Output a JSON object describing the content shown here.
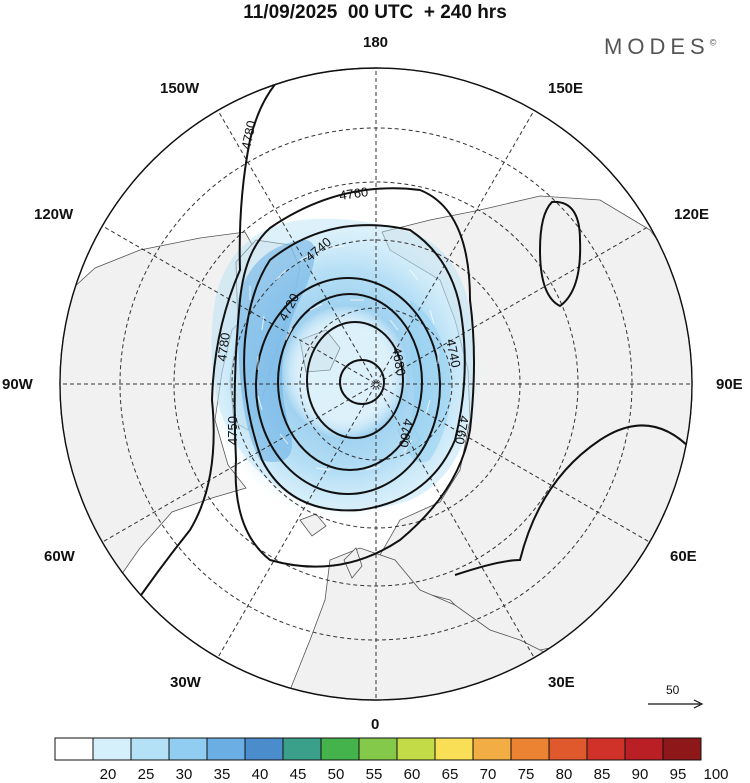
{
  "title": "11/09/2025  00 UTC  + 240 hrs",
  "brand": "MODES",
  "brand_mark": "©",
  "longitude_labels": {
    "top": "180",
    "bottom": "0",
    "left": "90W",
    "right": "90E",
    "upper_left_1": "150W",
    "upper_left_2": "120W",
    "lower_left_1": "60W",
    "lower_left_2": "30W",
    "upper_right_1": "150E",
    "upper_right_2": "120E",
    "lower_right_1": "60E",
    "lower_right_2": "30E"
  },
  "contour_labels": {
    "c4780_top": "4780",
    "c4760_top": "4760",
    "c4740_top": "4740",
    "c4720_top": "4720",
    "c4780_left": "4780",
    "c4750_left": "4750",
    "c4680_right": "4680",
    "c4740_right": "4740",
    "c4700_right": "4700",
    "c4760_right": "4760"
  },
  "wind_reference": {
    "label": "50",
    "icon": "arrow-right-icon"
  },
  "colorbar": {
    "labels": [
      "20",
      "25",
      "30",
      "35",
      "40",
      "45",
      "50",
      "55",
      "60",
      "65",
      "70",
      "75",
      "80",
      "85",
      "90",
      "95",
      "100"
    ],
    "colors": [
      "#ffffff",
      "#d6f0fb",
      "#b4e1f6",
      "#90cdf0",
      "#6aaee3",
      "#4a8ccc",
      "#3aa08a",
      "#45b34c",
      "#85c94a",
      "#c4db48",
      "#f8df55",
      "#f3ad45",
      "#ec8332",
      "#e0592c",
      "#d03229",
      "#b91f24",
      "#8e171a"
    ]
  }
}
